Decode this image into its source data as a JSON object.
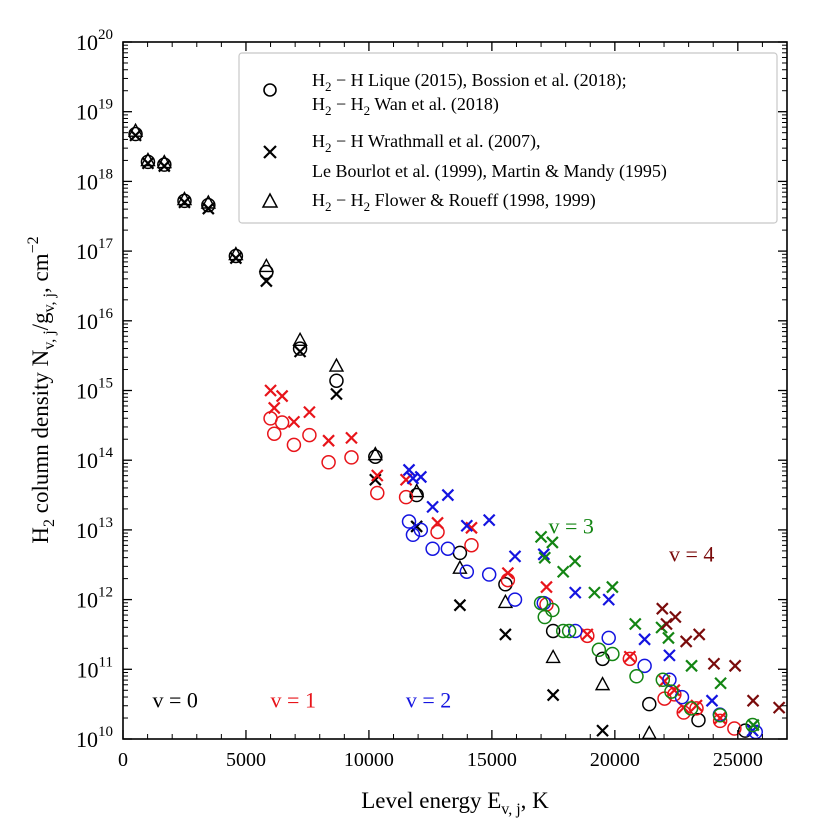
{
  "chart_data": {
    "type": "scatter",
    "title": "",
    "xlabel": "Level energy E",
    "xlabel_sub": "v, j",
    "xlabel_tail": ", K",
    "ylabel_parts": {
      "pre": "H",
      "sub1": "2",
      "mid": " column density N",
      "sub2": "v, j",
      "slash": "/g",
      "sub3": "v, j",
      "tail": ", cm",
      "sup": "−2"
    },
    "xlim": [
      0,
      27000
    ],
    "ylim_log10": [
      10,
      20
    ],
    "x_ticks": [
      0,
      5000,
      10000,
      15000,
      20000,
      25000
    ],
    "x_tick_labels": [
      "0",
      "5000",
      "10000",
      "15000",
      "20000",
      "25000"
    ],
    "y_ticks_exp": [
      10,
      11,
      12,
      13,
      14,
      15,
      16,
      17,
      18,
      19,
      20
    ],
    "y_tick_base": "10",
    "colors": {
      "v0": "#000000",
      "v1": "#e8141a",
      "v2": "#1414e0",
      "v3": "#138513",
      "v4": "#7a0b0b"
    },
    "legend": {
      "position": "top-right",
      "entries": [
        {
          "marker": "circle",
          "line1": {
            "a": "H",
            "a_sub": "2",
            "b": " − H  Lique (2015), Bossion et al. (2018);"
          },
          "line2": {
            "a": "H",
            "a_sub": "2",
            "b": " − H",
            "b_sub": "2",
            "c": " Wan et al. (2018)"
          }
        },
        {
          "marker": "cross",
          "line1": {
            "a": "H",
            "a_sub": "2",
            "b": " − H  Wrathmall et al. (2007),"
          },
          "line2": {
            "text": "Le Bourlot et al. (1999), Martin & Mandy (1995)"
          }
        },
        {
          "marker": "triangle",
          "line1": {
            "a": "H",
            "a_sub": "2",
            "b": " − H",
            "b_sub": "2",
            "c": "  Flower & Roueff (1998, 1999)"
          }
        }
      ]
    },
    "annotations": [
      {
        "text": "v = 0",
        "color_key": "v0",
        "x": 1200,
        "y_log": 10.45
      },
      {
        "text": "v = 1",
        "color_key": "v1",
        "x": 6000,
        "y_log": 10.45
      },
      {
        "text": "v = 2",
        "color_key": "v2",
        "x": 11500,
        "y_log": 10.45
      },
      {
        "text": "v = 3",
        "color_key": "v3",
        "x": 17300,
        "y_log": 12.95
      },
      {
        "text": "v = 4",
        "color_key": "v4",
        "x": 22200,
        "y_log": 12.55
      }
    ],
    "series": [
      {
        "name": "v=0 circles",
        "v": "v0",
        "marker": "circle",
        "points": [
          [
            510,
            18.68
          ],
          [
            1015,
            18.28
          ],
          [
            1680,
            18.24
          ],
          [
            2500,
            17.72
          ],
          [
            3470,
            17.66
          ],
          [
            4590,
            16.93
          ],
          [
            5830,
            16.7
          ],
          [
            7200,
            15.6
          ],
          [
            8680,
            15.14
          ],
          [
            10260,
            14.05
          ],
          [
            11940,
            13.5
          ],
          [
            13700,
            12.67
          ],
          [
            15550,
            12.22
          ],
          [
            17490,
            11.55
          ],
          [
            19500,
            11.15
          ],
          [
            21400,
            10.5
          ],
          [
            23400,
            10.27
          ],
          [
            25300,
            10.12
          ]
        ]
      },
      {
        "name": "v=0 crosses",
        "v": "v0",
        "marker": "cross",
        "points": [
          [
            510,
            18.66
          ],
          [
            1015,
            18.26
          ],
          [
            1680,
            18.22
          ],
          [
            2500,
            17.7
          ],
          [
            3470,
            17.61
          ],
          [
            4590,
            16.9
          ],
          [
            5830,
            16.57
          ],
          [
            7200,
            15.56
          ],
          [
            8680,
            14.95
          ],
          [
            10260,
            13.72
          ],
          [
            11940,
            13.05
          ],
          [
            13700,
            11.92
          ],
          [
            15550,
            11.5
          ],
          [
            17490,
            10.63
          ],
          [
            19500,
            10.12
          ]
        ]
      },
      {
        "name": "v=0 triangles",
        "v": "v0",
        "marker": "triangle",
        "points": [
          [
            510,
            18.72
          ],
          [
            1015,
            18.3
          ],
          [
            1680,
            18.27
          ],
          [
            2500,
            17.74
          ],
          [
            3470,
            17.69
          ],
          [
            4590,
            16.95
          ],
          [
            5830,
            16.78
          ],
          [
            7200,
            15.72
          ],
          [
            8680,
            15.35
          ],
          [
            10260,
            14.08
          ],
          [
            11940,
            13.55
          ],
          [
            13700,
            12.45
          ],
          [
            15550,
            11.96
          ],
          [
            17490,
            11.17
          ],
          [
            19500,
            10.78
          ],
          [
            21400,
            10.08
          ]
        ]
      },
      {
        "name": "v=1 circles",
        "v": "v1",
        "marker": "circle",
        "points": [
          [
            6000,
            14.6
          ],
          [
            6150,
            14.38
          ],
          [
            6470,
            14.54
          ],
          [
            6950,
            14.22
          ],
          [
            7580,
            14.36
          ],
          [
            8360,
            13.97
          ],
          [
            9290,
            14.04
          ],
          [
            10340,
            13.53
          ],
          [
            11510,
            13.47
          ],
          [
            12790,
            12.97
          ],
          [
            14170,
            12.78
          ],
          [
            15650,
            12.28
          ],
          [
            17220,
            11.93
          ],
          [
            18880,
            11.48
          ],
          [
            20610,
            11.15
          ],
          [
            22020,
            10.58
          ],
          [
            22420,
            10.64
          ],
          [
            22800,
            10.38
          ],
          [
            23320,
            10.44
          ],
          [
            24280,
            10.26
          ],
          [
            24860,
            10.15
          ]
        ]
      },
      {
        "name": "v=1 crosses",
        "v": "v1",
        "marker": "cross",
        "points": [
          [
            6000,
            15.0
          ],
          [
            6150,
            14.75
          ],
          [
            6470,
            14.92
          ],
          [
            6950,
            14.55
          ],
          [
            7580,
            14.69
          ],
          [
            8360,
            14.28
          ],
          [
            9290,
            14.32
          ],
          [
            10340,
            13.78
          ],
          [
            11510,
            13.72
          ],
          [
            12790,
            13.1
          ],
          [
            14170,
            13.03
          ],
          [
            15650,
            12.38
          ],
          [
            17220,
            12.18
          ],
          [
            18880,
            11.5
          ],
          [
            20610,
            11.18
          ],
          [
            22020,
            10.83
          ],
          [
            22420,
            10.7
          ],
          [
            22800,
            10.45
          ],
          [
            23320,
            10.48
          ],
          [
            24280,
            10.3
          ]
        ]
      },
      {
        "name": "v=2 circles",
        "v": "v2",
        "marker": "circle",
        "points": [
          [
            11630,
            13.12
          ],
          [
            11790,
            12.93
          ],
          [
            12110,
            13.0
          ],
          [
            12590,
            12.73
          ],
          [
            13210,
            12.73
          ],
          [
            13980,
            12.4
          ],
          [
            14890,
            12.36
          ],
          [
            15940,
            12.0
          ],
          [
            17110,
            11.95
          ],
          [
            18390,
            11.55
          ],
          [
            19750,
            11.45
          ],
          [
            21210,
            11.05
          ],
          [
            22220,
            10.85
          ],
          [
            22730,
            10.6
          ],
          [
            24270,
            10.35
          ],
          [
            25730,
            10.1
          ]
        ]
      },
      {
        "name": "v=2 crosses",
        "v": "v2",
        "marker": "cross",
        "points": [
          [
            11630,
            13.86
          ],
          [
            11790,
            13.74
          ],
          [
            12110,
            13.76
          ],
          [
            12590,
            13.33
          ],
          [
            13210,
            13.5
          ],
          [
            13980,
            13.06
          ],
          [
            14890,
            13.14
          ],
          [
            15940,
            12.62
          ],
          [
            17110,
            12.65
          ],
          [
            18390,
            12.1
          ],
          [
            19750,
            12.0
          ],
          [
            21210,
            11.43
          ],
          [
            22220,
            11.2
          ],
          [
            23950,
            10.55
          ],
          [
            25600,
            10.12
          ]
        ]
      },
      {
        "name": "v=3 circles",
        "v": "v3",
        "marker": "circle",
        "points": [
          [
            17000,
            11.95
          ],
          [
            17150,
            11.75
          ],
          [
            17460,
            11.85
          ],
          [
            17900,
            11.55
          ],
          [
            18140,
            11.55
          ],
          [
            19350,
            11.28
          ],
          [
            19900,
            11.22
          ],
          [
            20880,
            10.9
          ],
          [
            21950,
            10.85
          ],
          [
            22300,
            10.68
          ],
          [
            23100,
            10.44
          ],
          [
            24280,
            10.34
          ],
          [
            25600,
            10.2
          ]
        ]
      },
      {
        "name": "v=3 crosses",
        "v": "v3",
        "marker": "cross",
        "points": [
          [
            17000,
            12.9
          ],
          [
            17150,
            12.6
          ],
          [
            17460,
            12.82
          ],
          [
            17900,
            12.4
          ],
          [
            18380,
            12.55
          ],
          [
            19170,
            12.1
          ],
          [
            19900,
            12.18
          ],
          [
            20830,
            11.65
          ],
          [
            21900,
            11.6
          ],
          [
            22180,
            11.45
          ],
          [
            23120,
            11.05
          ],
          [
            24300,
            10.8
          ],
          [
            25630,
            10.2
          ]
        ]
      },
      {
        "name": "v=4 crosses",
        "v": "v4",
        "marker": "cross",
        "points": [
          [
            21930,
            11.87
          ],
          [
            22100,
            11.65
          ],
          [
            22460,
            11.75
          ],
          [
            22900,
            11.4
          ],
          [
            23430,
            11.5
          ],
          [
            24030,
            11.08
          ],
          [
            24890,
            11.05
          ],
          [
            25620,
            10.55
          ],
          [
            26680,
            10.45
          ]
        ]
      }
    ]
  }
}
